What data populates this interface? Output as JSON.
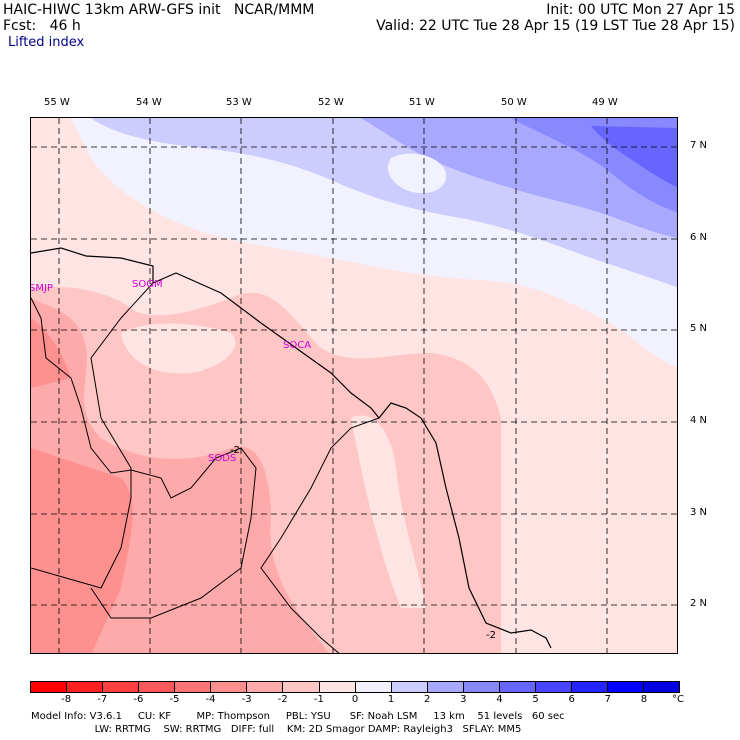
{
  "header": {
    "line1_left": "HAIC-HIWC 13km ARW-GFS init   NCAR/MMM",
    "line1_right": "Init: 00 UTC Mon 27 Apr 15",
    "line2_left": "Fcst:   46 h",
    "line2_right": "Valid: 22 UTC Tue 28 Apr 15 (19 LST Tue 28 Apr 15)",
    "field": "Lifted index"
  },
  "lon_ticks": [
    "55 W",
    "54 W",
    "53 W",
    "52 W",
    "51 W",
    "50 W",
    "49 W"
  ],
  "lat_ticks": [
    "7 N",
    "6 N",
    "5 N",
    "4 N",
    "3 N",
    "2 N"
  ],
  "stations": [
    "SMJP",
    "SOGM",
    "SOCA",
    "SODS"
  ],
  "contour_labels": [
    "-2",
    "-2"
  ],
  "colorbar": {
    "labels": [
      "-8",
      "-7",
      "-6",
      "-5",
      "-4",
      "-3",
      "-2",
      "-1",
      "0",
      "1",
      "2",
      "3",
      "4",
      "5",
      "6",
      "7",
      "8"
    ],
    "unit": "°C",
    "colors": [
      "#ff0000",
      "#ff2020",
      "#ff4040",
      "#ff5a5a",
      "#ff7474",
      "#ff9090",
      "#ffaaaa",
      "#ffc6c6",
      "#ffe4e4",
      "#f2f2ff",
      "#ccccff",
      "#a8a8ff",
      "#8888ff",
      "#6666ff",
      "#4646ff",
      "#2424ff",
      "#0000ff",
      "#0000e0"
    ]
  },
  "footer": {
    "line1": "Model Info: V3.6.1     CU: KF        MP: Thompson     PBL: YSU      SF: Noah LSM     13 km    51 levels   60 sec",
    "line2": "                    LW: RRTMG    SW: RRTMG   DIFF: full    KM: 2D Smagor DAMP: Rayleigh3   SFLAY: MM5"
  }
}
